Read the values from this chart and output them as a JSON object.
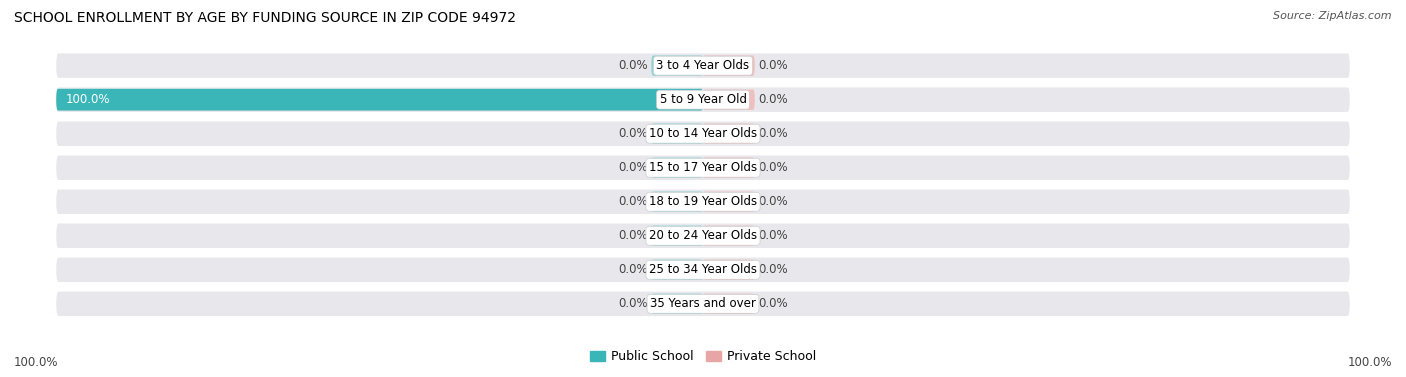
{
  "title": "SCHOOL ENROLLMENT BY AGE BY FUNDING SOURCE IN ZIP CODE 94972",
  "source": "Source: ZipAtlas.com",
  "categories": [
    "3 to 4 Year Olds",
    "5 to 9 Year Old",
    "10 to 14 Year Olds",
    "15 to 17 Year Olds",
    "18 to 19 Year Olds",
    "20 to 24 Year Olds",
    "25 to 34 Year Olds",
    "35 Years and over"
  ],
  "public_values": [
    0.0,
    100.0,
    0.0,
    0.0,
    0.0,
    0.0,
    0.0,
    0.0
  ],
  "private_values": [
    0.0,
    0.0,
    0.0,
    0.0,
    0.0,
    0.0,
    0.0,
    0.0
  ],
  "public_color": "#3ab5b8",
  "private_color": "#e8a5a5",
  "row_bg_color": "#e8e8ec",
  "stub_pub_color": "#8dd4d6",
  "stub_priv_color": "#f0bebe",
  "title_fontsize": 10,
  "label_fontsize": 8.5,
  "cat_fontsize": 8.5,
  "xlim_left": -100,
  "xlim_right": 100,
  "stub_size": 8,
  "bottom_left_label": "100.0%",
  "bottom_right_label": "100.0%",
  "legend_labels": [
    "Public School",
    "Private School"
  ]
}
